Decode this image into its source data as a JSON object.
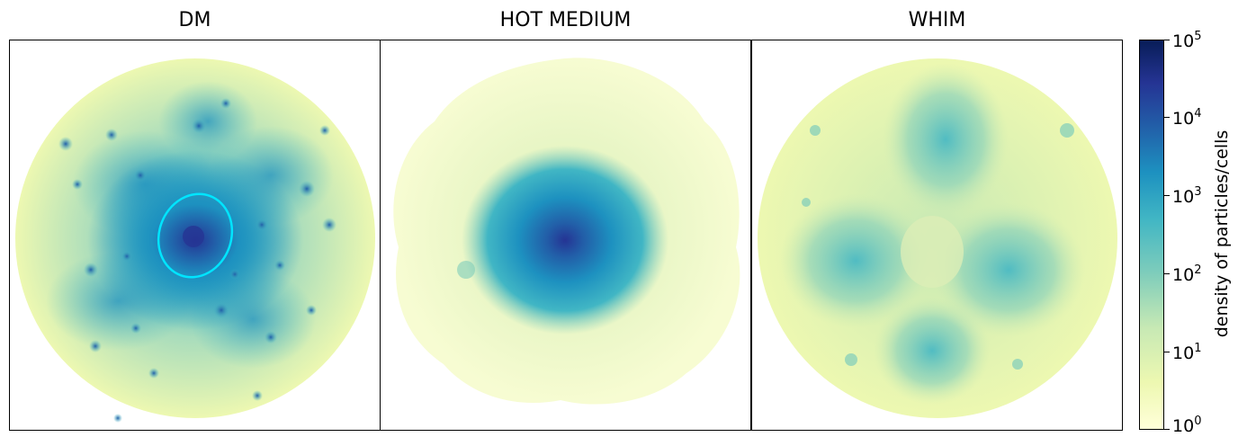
{
  "panels": [
    {
      "title": "DM"
    },
    {
      "title": "HOT MEDIUM"
    },
    {
      "title": "WHIM"
    }
  ],
  "colorbar": {
    "label": "density of particles/cells",
    "ticks": [
      {
        "base": "10",
        "exp": "5"
      },
      {
        "base": "10",
        "exp": "4"
      },
      {
        "base": "10",
        "exp": "3"
      },
      {
        "base": "10",
        "exp": "2"
      },
      {
        "base": "10",
        "exp": "1"
      },
      {
        "base": "10",
        "exp": "0"
      }
    ],
    "scale": "log",
    "range": [
      1,
      100000
    ],
    "colormap": "YlGnBu"
  },
  "colors": {
    "ellipse": "#00e5ff",
    "low": "#ffffd9",
    "high": "#081d58"
  }
}
